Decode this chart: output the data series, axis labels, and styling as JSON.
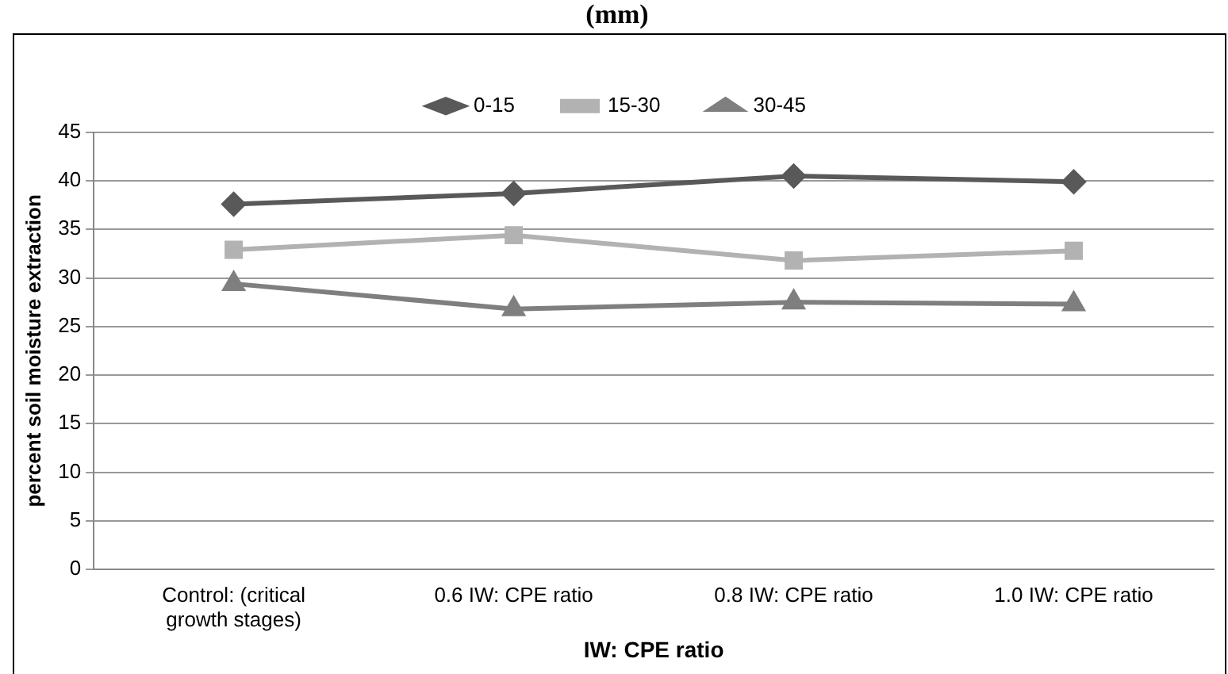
{
  "chart_data": {
    "type": "line",
    "title": "(mm)",
    "xlabel": "IW: CPE ratio",
    "ylabel": "percent soil moisture extraction",
    "categories": [
      "Control: (critical growth stages)",
      "0.6 IW: CPE ratio",
      "0.8 IW: CPE ratio",
      "1.0 IW: CPE ratio"
    ],
    "series": [
      {
        "name": "0-15",
        "color": "#595959",
        "marker": "diamond",
        "values": [
          37.6,
          38.7,
          40.5,
          39.9
        ]
      },
      {
        "name": "15-30",
        "color": "#b2b2b2",
        "marker": "square",
        "values": [
          32.9,
          34.4,
          31.8,
          32.8
        ]
      },
      {
        "name": "30-45",
        "color": "#7f7f7f",
        "marker": "triangle",
        "values": [
          29.4,
          26.8,
          27.5,
          27.3
        ]
      }
    ],
    "ylim": [
      0,
      45
    ],
    "yticks": [
      0,
      5,
      10,
      15,
      20,
      25,
      30,
      35,
      40,
      45
    ],
    "grid": "y",
    "legend": "top",
    "line_style": "solid"
  }
}
